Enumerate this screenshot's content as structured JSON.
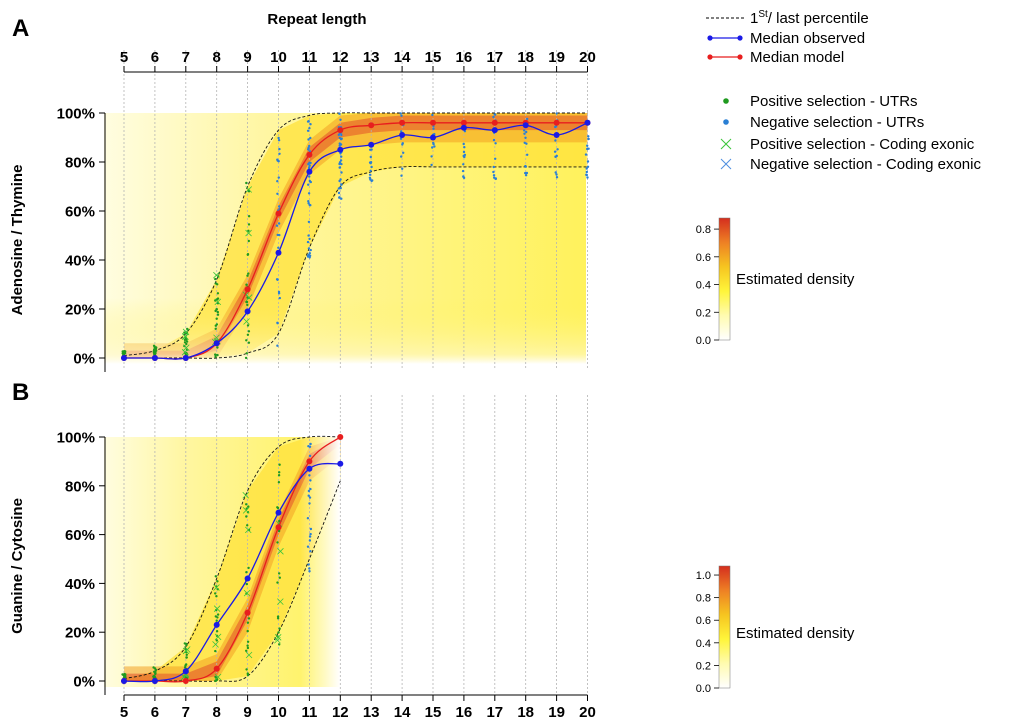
{
  "figure": {
    "top_axis_title": "Repeat length",
    "legend": {
      "percentile_label": "1st/ last percentile",
      "percentile_base": "1",
      "percentile_sup": "St",
      "percentile_rest": "/ last percentile",
      "median_observed": "Median observed",
      "median_model": "Median model",
      "pos_utr": "Positive selection - UTRs",
      "neg_utr": "Negative selection - UTRs",
      "pos_coding": "Positive selection - Coding exonic",
      "neg_coding": "Negative selection - Coding exonic"
    },
    "colors": {
      "observed": "#1a1ae6",
      "model": "#e81e1e",
      "positive": "#1f9a1f",
      "negative": "#2a7fd4",
      "positive_coding": "#3ac43a",
      "negative_coding": "#4f8fe0"
    }
  },
  "chart_data": [
    {
      "panel_label": "A",
      "type": "scatter",
      "ylabel": "Adenosine / Thymine",
      "x_ticks": [
        "5",
        "6",
        "7",
        "8",
        "9",
        "10",
        "11",
        "12",
        "13",
        "14",
        "15",
        "16",
        "17",
        "18",
        "19",
        "20"
      ],
      "y_ticks": [
        "0%",
        "20%",
        "40%",
        "60%",
        "80%",
        "100%"
      ],
      "xlim": [
        5,
        20
      ],
      "ylim": [
        0,
        100
      ],
      "colorbar": {
        "label": "Estimated density",
        "ticks": [
          "0.0",
          "0.2",
          "0.4",
          "0.6",
          "0.8"
        ],
        "max": 0.88
      },
      "series": [
        {
          "name": "Median observed",
          "x": [
            5,
            6,
            7,
            8,
            9,
            10,
            11,
            12,
            13,
            14,
            15,
            16,
            17,
            18,
            19,
            20
          ],
          "y": [
            0,
            0,
            0,
            6,
            19,
            43,
            76,
            85,
            87,
            91,
            90,
            94,
            93,
            95,
            91,
            96
          ]
        },
        {
          "name": "Median model",
          "x": [
            5,
            6,
            7,
            8,
            9,
            10,
            11,
            12,
            13,
            14,
            15,
            16,
            17,
            18,
            19,
            20
          ],
          "y": [
            0,
            0,
            0,
            6,
            28,
            59,
            83,
            93,
            95,
            96,
            96,
            96,
            96,
            96,
            96,
            96
          ]
        }
      ],
      "percentile_lower": {
        "x": [
          5,
          6,
          7,
          8,
          9,
          10,
          11,
          12,
          13,
          14,
          15,
          16,
          17,
          18,
          19,
          20
        ],
        "y": [
          0,
          0,
          0,
          0,
          2,
          10,
          45,
          70,
          76,
          78,
          78,
          78,
          78,
          78,
          78,
          78
        ]
      },
      "percentile_upper": {
        "x": [
          5,
          6,
          7,
          8,
          9,
          10,
          11,
          12,
          13,
          14,
          15,
          16,
          17,
          18,
          19,
          20
        ],
        "y": [
          1,
          3,
          10,
          32,
          70,
          93,
          99,
          100,
          100,
          100,
          100,
          100,
          100,
          100,
          100,
          100
        ]
      }
    },
    {
      "panel_label": "B",
      "type": "scatter",
      "ylabel": "Guanine / Cytosine",
      "x_ticks": [
        "5",
        "6",
        "7",
        "8",
        "9",
        "10",
        "11",
        "12",
        "13",
        "14",
        "15",
        "16",
        "17",
        "18",
        "19",
        "20"
      ],
      "y_ticks": [
        "0%",
        "20%",
        "40%",
        "60%",
        "80%",
        "100%"
      ],
      "xlim": [
        5,
        20
      ],
      "ylim": [
        0,
        100
      ],
      "colorbar": {
        "label": "Estimated density",
        "ticks": [
          "0.0",
          "0.2",
          "0.4",
          "0.6",
          "0.8",
          "1.0"
        ],
        "max": 1.08
      },
      "series": [
        {
          "name": "Median observed",
          "x": [
            5,
            6,
            7,
            8,
            9,
            10,
            11,
            12
          ],
          "y": [
            0,
            0,
            4,
            23,
            42,
            69,
            87,
            89
          ]
        },
        {
          "name": "Median model",
          "x": [
            5,
            6,
            7,
            8,
            9,
            10,
            11,
            12
          ],
          "y": [
            0,
            0,
            0,
            5,
            28,
            63,
            90,
            100
          ]
        }
      ],
      "percentile_lower": {
        "x": [
          5,
          6,
          7,
          8,
          9,
          10,
          11,
          12
        ],
        "y": [
          0,
          0,
          0,
          0,
          2,
          20,
          50,
          82
        ]
      },
      "percentile_upper": {
        "x": [
          5,
          6,
          7,
          8,
          9,
          10,
          11,
          12
        ],
        "y": [
          1,
          4,
          14,
          42,
          78,
          96,
          100,
          100
        ]
      }
    }
  ]
}
